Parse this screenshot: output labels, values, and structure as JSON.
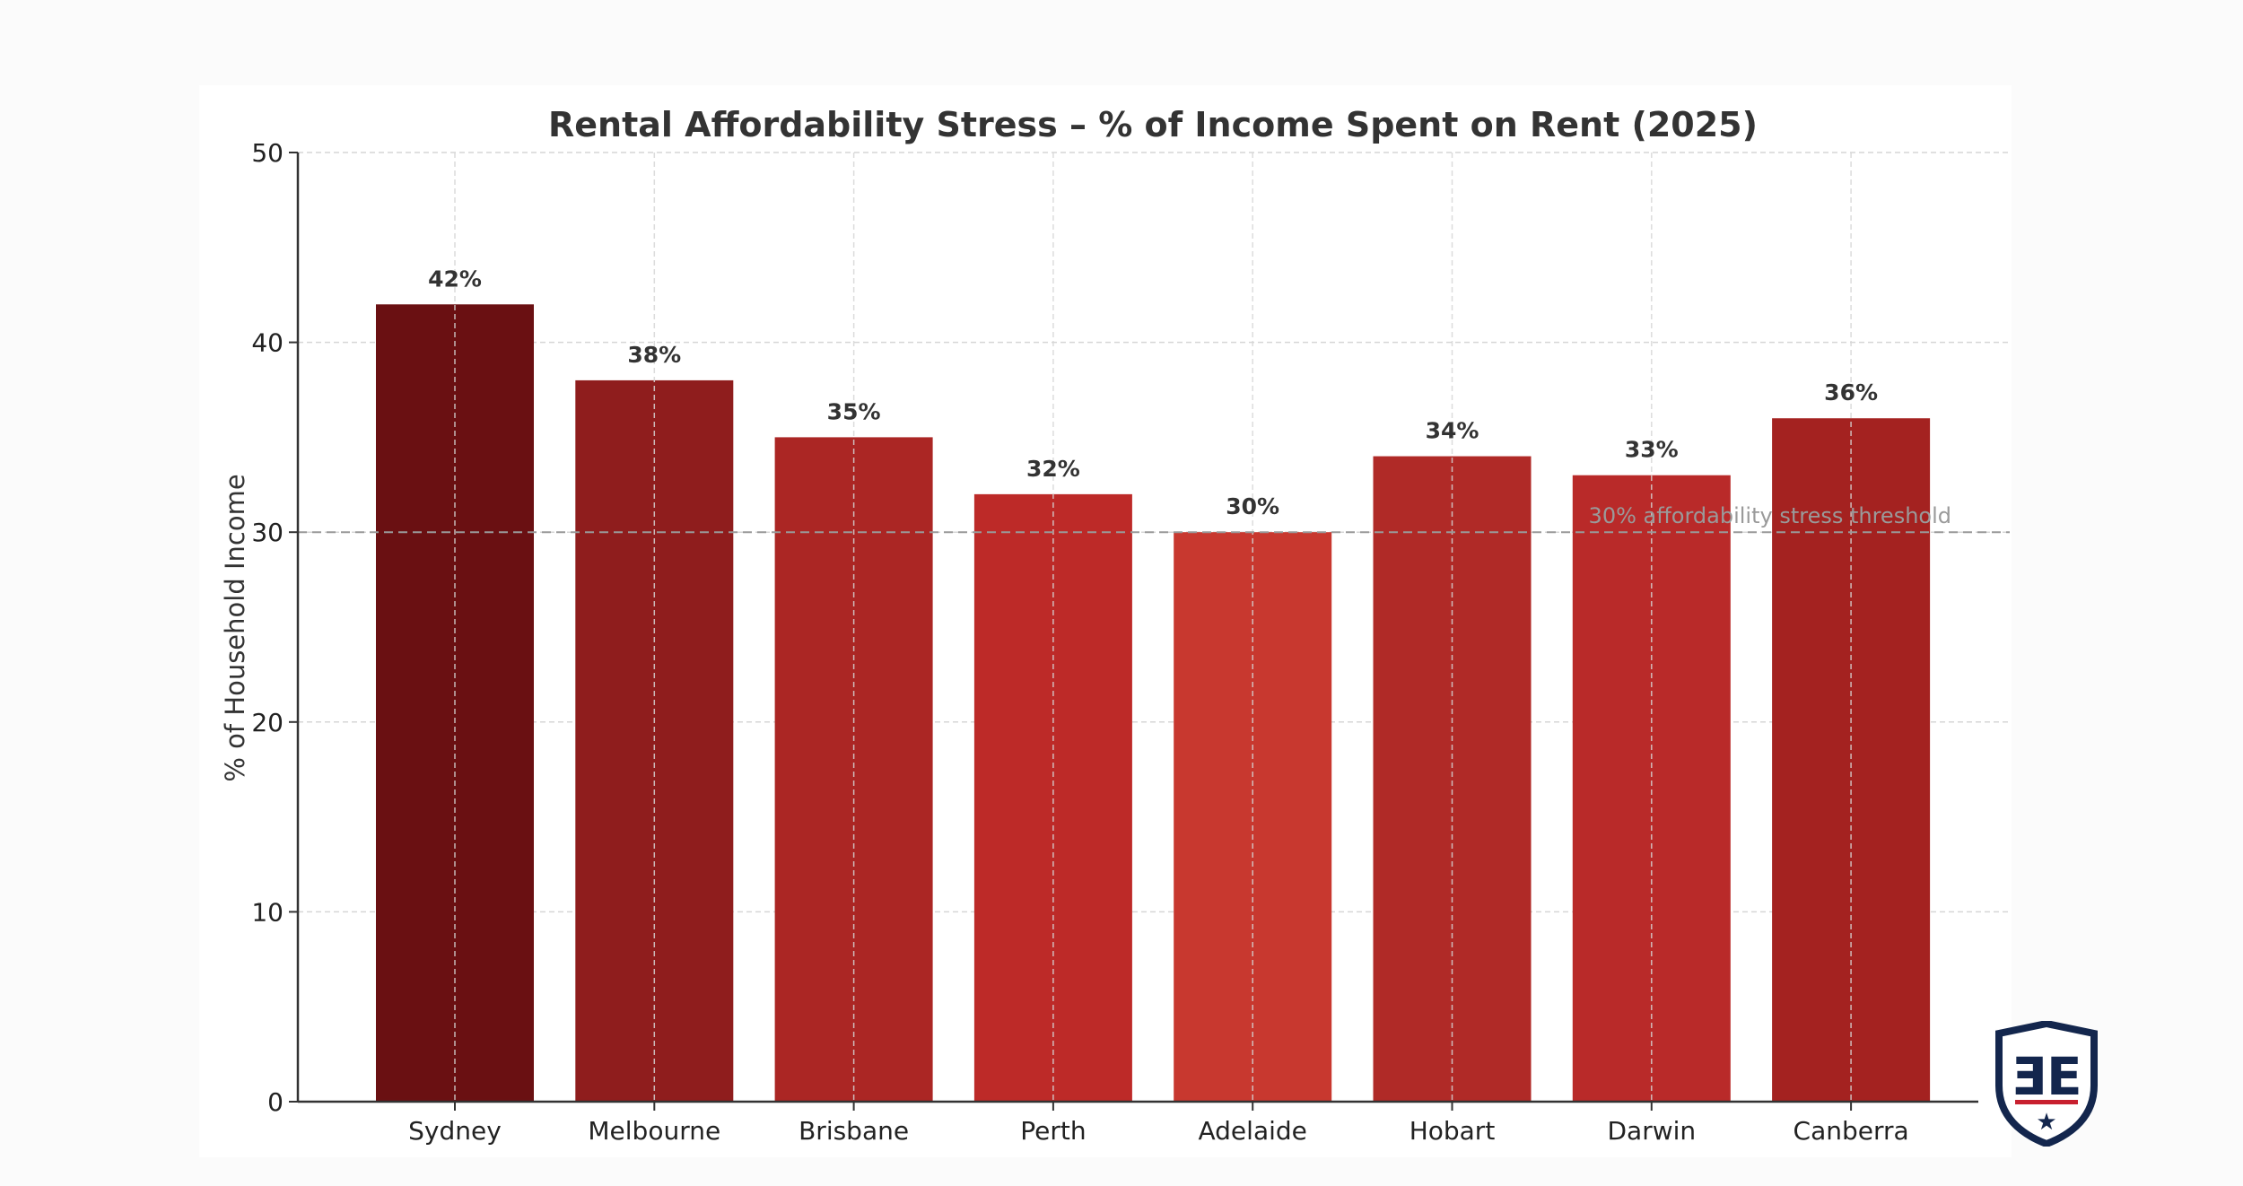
{
  "chart_data": {
    "type": "bar",
    "title": "Rental Affordability Stress – % of Income Spent on Rent (2025)",
    "xlabel": "",
    "ylabel": "% of Household Income",
    "ylim": [
      0,
      50
    ],
    "yticks": [
      0,
      10,
      20,
      30,
      40,
      50
    ],
    "grid": true,
    "categories": [
      "Sydney",
      "Melbourne",
      "Brisbane",
      "Perth",
      "Adelaide",
      "Hobart",
      "Darwin",
      "Canberra"
    ],
    "values": [
      42,
      38,
      35,
      32,
      30,
      34,
      33,
      36
    ],
    "data_labels": [
      "42%",
      "38%",
      "35%",
      "32%",
      "30%",
      "34%",
      "33%",
      "36%"
    ],
    "bar_colors": [
      "#6a1012",
      "#8f1d1d",
      "#ab2624",
      "#bd2a28",
      "#c8382f",
      "#b02a27",
      "#b92a29",
      "#a42220"
    ],
    "threshold": {
      "value": 30,
      "label": "30% affordability stress threshold",
      "color": "#999999"
    }
  },
  "colors": {
    "grid": "#d6d6d6",
    "axis": "#333333",
    "logo_navy": "#13264d",
    "logo_red": "#c8202f"
  }
}
